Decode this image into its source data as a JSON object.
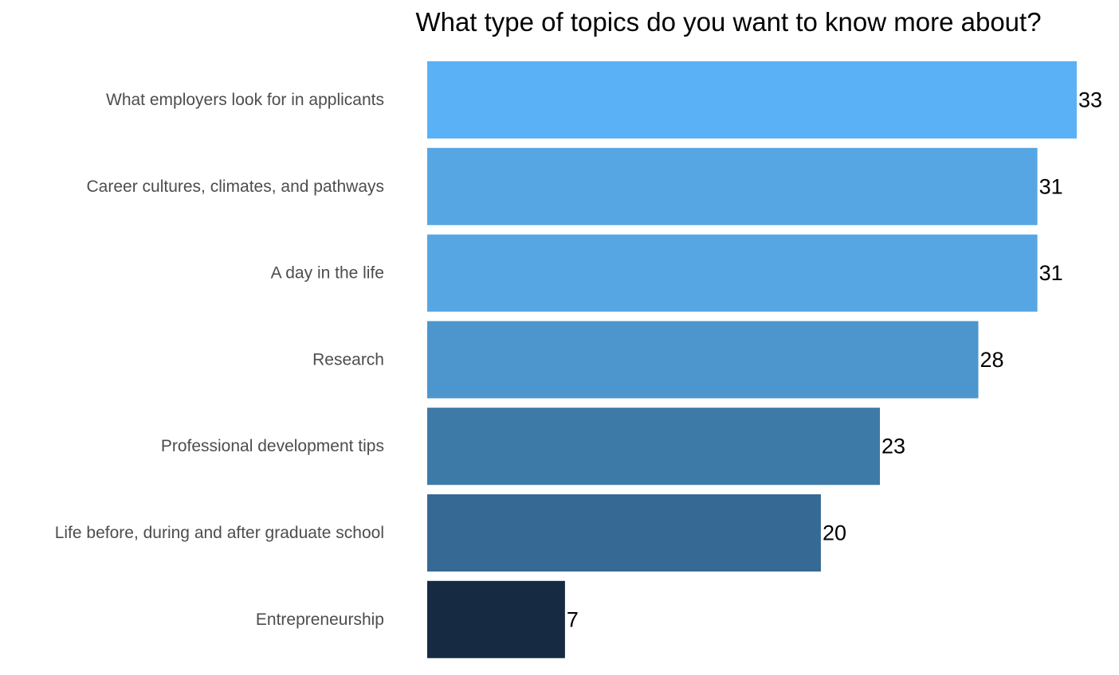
{
  "chart_data": {
    "type": "bar",
    "orientation": "horizontal",
    "title": "What type of topics do you want to know more about?",
    "xlabel": "",
    "ylabel": "",
    "grid": false,
    "legend": "none",
    "xlim": [
      0,
      33
    ],
    "categories": [
      "What employers look for in applicants",
      "Career cultures, climates, and pathways",
      "A day in the life",
      "Research",
      "Professional development tips",
      "Life before, during and after graduate school",
      "Entrepreneurship"
    ],
    "values": [
      33,
      31,
      31,
      28,
      23,
      20,
      7
    ],
    "value_labels": [
      "33",
      "31",
      "31",
      "28",
      "23",
      "20",
      "7"
    ],
    "colors": [
      "#5ab1f5",
      "#56a6e4",
      "#56a6e4",
      "#4c96cd",
      "#3e7aa8",
      "#366a94",
      "#162b42"
    ]
  }
}
